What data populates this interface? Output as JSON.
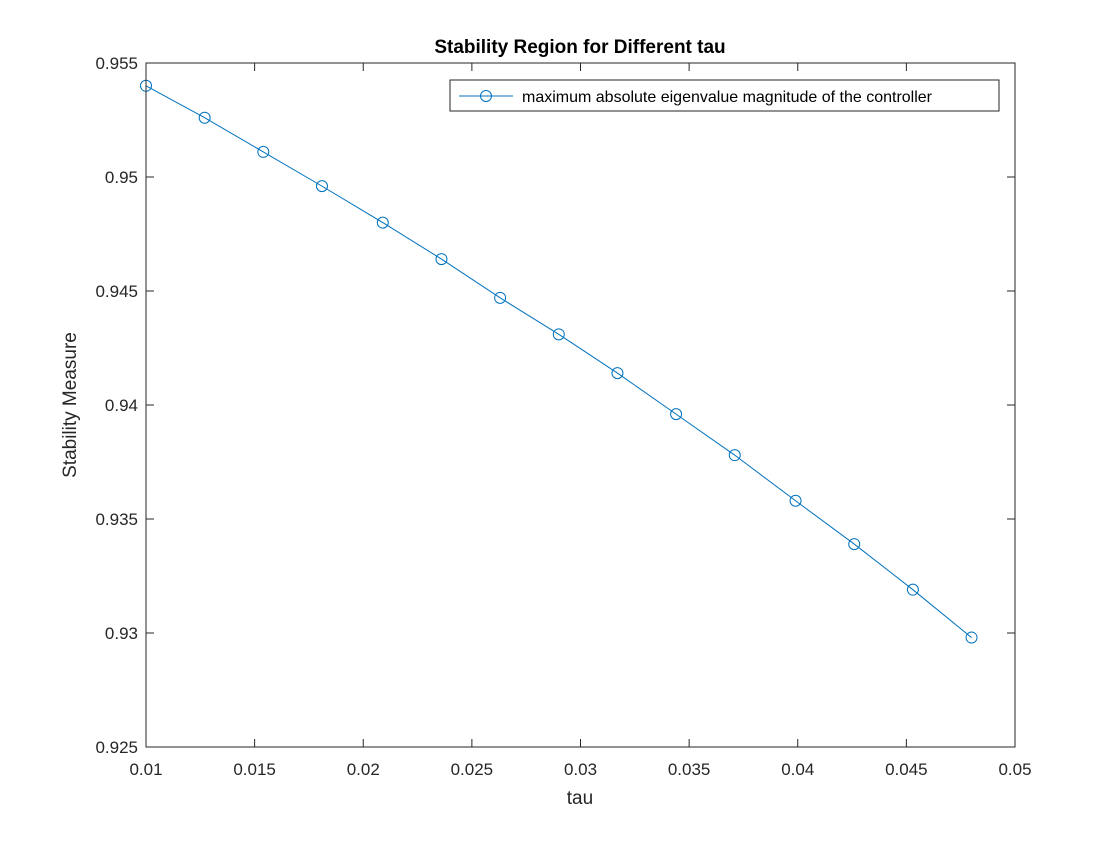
{
  "chart_data": {
    "type": "line",
    "title": "Stability Region for Different tau",
    "xlabel": "tau",
    "ylabel": "Stability Measure",
    "xlim": [
      0.01,
      0.05
    ],
    "ylim": [
      0.925,
      0.955
    ],
    "xticks": [
      0.01,
      0.015,
      0.02,
      0.025,
      0.03,
      0.035,
      0.04,
      0.045,
      0.05
    ],
    "yticks": [
      0.925,
      0.93,
      0.935,
      0.94,
      0.945,
      0.95,
      0.955
    ],
    "xtick_labels": [
      "0.01",
      "0.015",
      "0.02",
      "0.025",
      "0.03",
      "0.035",
      "0.04",
      "0.045",
      "0.05"
    ],
    "ytick_labels": [
      "0.925",
      "0.93",
      "0.935",
      "0.94",
      "0.945",
      "0.95",
      "0.955"
    ],
    "grid": false,
    "legend_position": "top-right",
    "series": [
      {
        "name": "maximum absolute eigenvalue magnitude of the controller",
        "color": "#0072BD",
        "marker": "circle",
        "x": [
          0.01,
          0.0127,
          0.0154,
          0.0181,
          0.0209,
          0.0236,
          0.0263,
          0.029,
          0.0317,
          0.0344,
          0.0371,
          0.0399,
          0.0426,
          0.0453,
          0.048
        ],
        "y": [
          0.954,
          0.9526,
          0.9511,
          0.9496,
          0.948,
          0.9464,
          0.9447,
          0.9431,
          0.9414,
          0.9396,
          0.9378,
          0.9358,
          0.9339,
          0.9319,
          0.9298
        ]
      }
    ]
  }
}
